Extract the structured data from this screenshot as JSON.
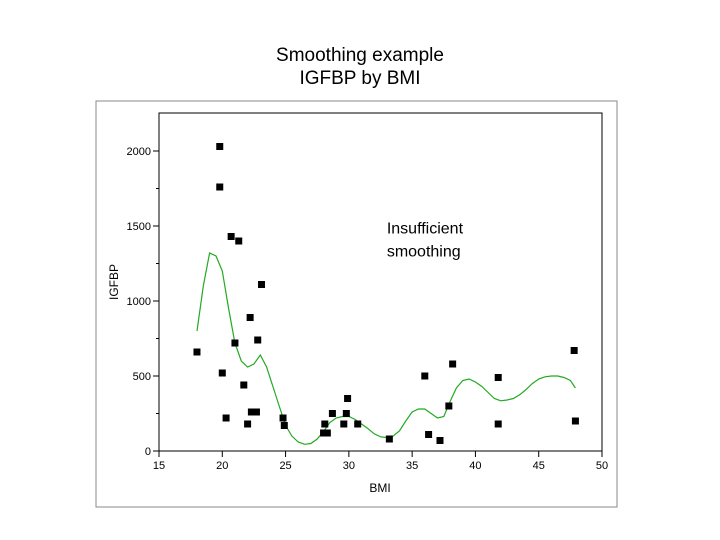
{
  "slide": {
    "title_line1": "Smoothing example",
    "title_line2": "IGFBP by BMI"
  },
  "chart_data": {
    "type": "scatter",
    "title": "Smoothing example",
    "subtitle": "IGFBP by BMI",
    "xlabel": "BMI",
    "ylabel": "IGFBP",
    "xlim": [
      15,
      50
    ],
    "ylim": [
      0,
      2200
    ],
    "x_ticks": [
      15,
      20,
      25,
      30,
      35,
      40,
      45,
      50
    ],
    "y_ticks": [
      0,
      500,
      1000,
      1500,
      2000
    ],
    "grid": false,
    "series": [
      {
        "name": "observations",
        "kind": "scatter",
        "color": "#000000",
        "points": [
          [
            18.0,
            660
          ],
          [
            19.8,
            2030
          ],
          [
            19.8,
            1760
          ],
          [
            20.0,
            520
          ],
          [
            20.3,
            220
          ],
          [
            20.7,
            1430
          ],
          [
            21.0,
            720
          ],
          [
            21.3,
            1400
          ],
          [
            21.7,
            440
          ],
          [
            22.0,
            180
          ],
          [
            22.2,
            890
          ],
          [
            22.3,
            260
          ],
          [
            22.7,
            260
          ],
          [
            22.8,
            740
          ],
          [
            23.1,
            1110
          ],
          [
            24.8,
            220
          ],
          [
            24.9,
            170
          ],
          [
            28.0,
            120
          ],
          [
            28.1,
            180
          ],
          [
            28.3,
            120
          ],
          [
            28.7,
            250
          ],
          [
            29.6,
            180
          ],
          [
            29.8,
            250
          ],
          [
            29.9,
            350
          ],
          [
            30.7,
            180
          ],
          [
            33.2,
            80
          ],
          [
            36.0,
            500
          ],
          [
            36.3,
            110
          ],
          [
            37.2,
            70
          ],
          [
            37.9,
            300
          ],
          [
            38.2,
            580
          ],
          [
            41.8,
            490
          ],
          [
            41.8,
            180
          ],
          [
            47.8,
            670
          ],
          [
            47.9,
            200
          ]
        ]
      },
      {
        "name": "smoother",
        "kind": "line",
        "color": "#22aa22",
        "points": [
          [
            18.0,
            800
          ],
          [
            18.5,
            1100
          ],
          [
            19.0,
            1320
          ],
          [
            19.5,
            1300
          ],
          [
            20.0,
            1200
          ],
          [
            20.5,
            950
          ],
          [
            21.0,
            720
          ],
          [
            21.5,
            600
          ],
          [
            22.0,
            560
          ],
          [
            22.5,
            580
          ],
          [
            23.0,
            640
          ],
          [
            23.5,
            560
          ],
          [
            24.0,
            430
          ],
          [
            24.5,
            300
          ],
          [
            25.0,
            170
          ],
          [
            25.5,
            100
          ],
          [
            26.0,
            60
          ],
          [
            26.5,
            45
          ],
          [
            27.0,
            50
          ],
          [
            27.5,
            80
          ],
          [
            28.0,
            130
          ],
          [
            28.5,
            190
          ],
          [
            29.0,
            220
          ],
          [
            29.5,
            230
          ],
          [
            30.0,
            230
          ],
          [
            30.5,
            210
          ],
          [
            31.0,
            180
          ],
          [
            31.5,
            150
          ],
          [
            32.0,
            115
          ],
          [
            32.5,
            95
          ],
          [
            33.0,
            90
          ],
          [
            33.5,
            100
          ],
          [
            34.0,
            135
          ],
          [
            34.5,
            200
          ],
          [
            35.0,
            260
          ],
          [
            35.5,
            280
          ],
          [
            36.0,
            280
          ],
          [
            36.5,
            250
          ],
          [
            37.0,
            220
          ],
          [
            37.5,
            230
          ],
          [
            38.0,
            330
          ],
          [
            38.5,
            420
          ],
          [
            39.0,
            470
          ],
          [
            39.5,
            480
          ],
          [
            40.0,
            460
          ],
          [
            40.5,
            430
          ],
          [
            41.0,
            390
          ],
          [
            41.5,
            350
          ],
          [
            42.0,
            335
          ],
          [
            42.5,
            340
          ],
          [
            43.0,
            350
          ],
          [
            43.5,
            375
          ],
          [
            44.0,
            410
          ],
          [
            44.5,
            450
          ],
          [
            45.0,
            480
          ],
          [
            45.5,
            495
          ],
          [
            46.0,
            500
          ],
          [
            46.5,
            500
          ],
          [
            47.0,
            490
          ],
          [
            47.5,
            470
          ],
          [
            47.9,
            420
          ]
        ]
      }
    ],
    "annotations": [
      {
        "text_line1": "Insufficient",
        "text_line2": "smoothing",
        "x": 33.0,
        "y": 1450
      }
    ]
  }
}
